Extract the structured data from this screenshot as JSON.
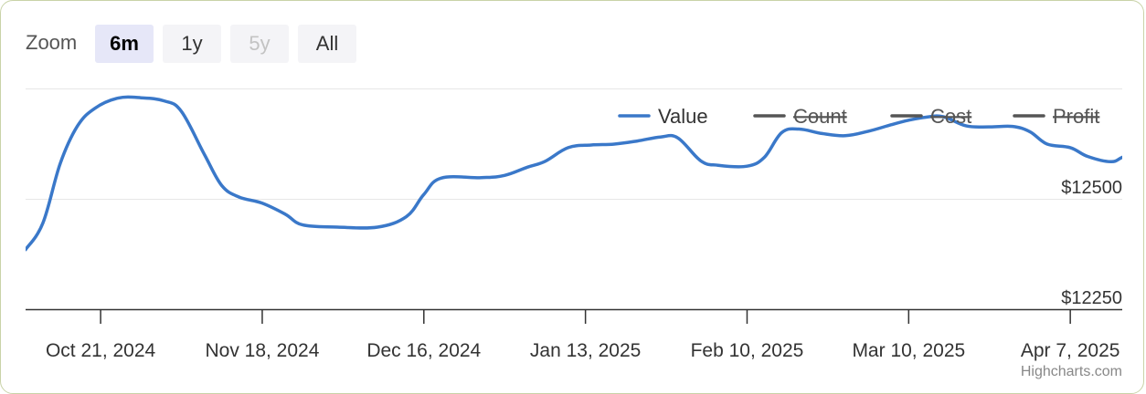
{
  "zoom": {
    "label": "Zoom",
    "buttons": [
      {
        "label": "6m",
        "state": "active"
      },
      {
        "label": "1y",
        "state": "normal"
      },
      {
        "label": "5y",
        "state": "disabled"
      },
      {
        "label": "All",
        "state": "normal"
      }
    ]
  },
  "credits": "Highcharts.com",
  "chart_data": {
    "type": "line",
    "title": "",
    "xlabel": "",
    "ylabel": "",
    "x_ticks": [
      "Oct 21, 2024",
      "Nov 18, 2024",
      "Dec 16, 2024",
      "Jan 13, 2025",
      "Feb 10, 2025",
      "Mar 10, 2025",
      "Apr 7, 2025"
    ],
    "y_ticks": [
      {
        "value": 12250,
        "label": "$12250"
      },
      {
        "value": 12500,
        "label": "$12500"
      }
    ],
    "xlim": [
      "2024-10-08",
      "2025-04-16"
    ],
    "ylim": [
      12250,
      12750
    ],
    "grid": true,
    "legend_position": "top-right",
    "legend": [
      {
        "name": "Value",
        "color": "#3a78c9",
        "visible": true
      },
      {
        "name": "Count",
        "color": "#666666",
        "visible": false
      },
      {
        "name": "Cost",
        "color": "#666666",
        "visible": false
      },
      {
        "name": "Profit",
        "color": "#666666",
        "visible": false
      }
    ],
    "series": [
      {
        "name": "Value",
        "color": "#3a78c9",
        "points": [
          [
            "2024-10-08",
            12385
          ],
          [
            "2024-10-11",
            12445
          ],
          [
            "2024-10-14",
            12580
          ],
          [
            "2024-10-17",
            12665
          ],
          [
            "2024-10-20",
            12705
          ],
          [
            "2024-10-24",
            12728
          ],
          [
            "2024-10-28",
            12729
          ],
          [
            "2024-11-01",
            12722
          ],
          [
            "2024-11-04",
            12698
          ],
          [
            "2024-11-08",
            12600
          ],
          [
            "2024-11-11",
            12530
          ],
          [
            "2024-11-14",
            12504
          ],
          [
            "2024-11-18",
            12490
          ],
          [
            "2024-11-22",
            12465
          ],
          [
            "2024-11-25",
            12441
          ],
          [
            "2024-12-01",
            12436
          ],
          [
            "2024-12-08",
            12436
          ],
          [
            "2024-12-13",
            12460
          ],
          [
            "2024-12-16",
            12510
          ],
          [
            "2024-12-19",
            12547
          ],
          [
            "2024-12-26",
            12548
          ],
          [
            "2024-12-30",
            12553
          ],
          [
            "2025-01-03",
            12572
          ],
          [
            "2025-01-06",
            12585
          ],
          [
            "2025-01-10",
            12616
          ],
          [
            "2025-01-14",
            12622
          ],
          [
            "2025-01-18",
            12624
          ],
          [
            "2025-01-22",
            12631
          ],
          [
            "2025-01-26",
            12640
          ],
          [
            "2025-01-29",
            12638
          ],
          [
            "2025-02-02",
            12586
          ],
          [
            "2025-02-05",
            12576
          ],
          [
            "2025-02-10",
            12574
          ],
          [
            "2025-02-13",
            12594
          ],
          [
            "2025-02-16",
            12650
          ],
          [
            "2025-02-19",
            12658
          ],
          [
            "2025-02-23",
            12648
          ],
          [
            "2025-02-27",
            12643
          ],
          [
            "2025-03-03",
            12653
          ],
          [
            "2025-03-07",
            12668
          ],
          [
            "2025-03-10",
            12678
          ],
          [
            "2025-03-13",
            12685
          ],
          [
            "2025-03-16",
            12686
          ],
          [
            "2025-03-20",
            12665
          ],
          [
            "2025-03-24",
            12663
          ],
          [
            "2025-03-28",
            12664
          ],
          [
            "2025-03-31",
            12652
          ],
          [
            "2025-04-03",
            12624
          ],
          [
            "2025-04-07",
            12616
          ],
          [
            "2025-04-10",
            12596
          ],
          [
            "2025-04-14",
            12584
          ],
          [
            "2025-04-16",
            12594
          ],
          [
            "2025-04-19",
            12613
          ]
        ]
      }
    ]
  }
}
